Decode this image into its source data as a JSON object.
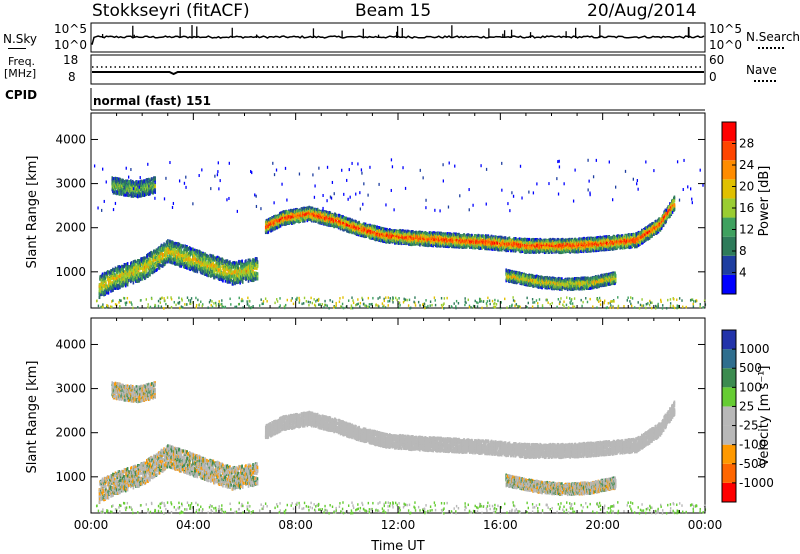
{
  "header": {
    "radar": "Stokkseyri (fitACF)",
    "beam": "Beam 15",
    "date": "20/Aug/2014"
  },
  "sky_panel": {
    "left_label": "N.Sky",
    "left_ticks": [
      "10^5",
      "10^0"
    ],
    "right_label": "N.Search",
    "right_ticks": [
      "10^5",
      "10^0"
    ]
  },
  "freq_panel": {
    "left_label_1": "Freq.",
    "left_label_2": "[MHz]",
    "left_ticks": [
      "18",
      "8"
    ],
    "right_label": "Nave",
    "right_ticks": [
      "60",
      "0"
    ]
  },
  "cpid_panel": {
    "label": "CPID",
    "text": "normal (fast) 151"
  },
  "colors": {
    "power_scale": [
      "#0000ff",
      "#1e3ea0",
      "#2e7b5a",
      "#3fa15f",
      "#9acd32",
      "#e0c000",
      "#ff8c00",
      "#ff4500",
      "#ff0000"
    ],
    "velocity_scale": [
      "#2233aa",
      "#2f6e8e",
      "#3b8b4f",
      "#66cc33",
      "#b8b8b8",
      "#b8b8b8",
      "#ff9900",
      "#ff6600",
      "#ff0000"
    ]
  },
  "chart_data": [
    {
      "type": "heatmap",
      "panel": "power",
      "ylabel": "Slant Range [km]",
      "yticks": [
        1000,
        2000,
        3000,
        4000
      ],
      "ylim": [
        180,
        4600
      ],
      "xlim": [
        0,
        24
      ],
      "colorbar_label": "Power [dB]",
      "colorbar_ticks": [
        "4",
        "8",
        "12",
        "16",
        "20",
        "24",
        "28"
      ],
      "features": [
        {
          "name": "main echo band",
          "t": [
            6.8,
            7.5,
            8.5,
            9.5,
            10.5,
            11.5,
            12.5,
            14,
            15.5,
            17,
            18.5,
            19.5,
            20.5,
            21.3,
            22.2,
            22.8
          ],
          "range": [
            2050,
            2250,
            2350,
            2200,
            2000,
            1850,
            1800,
            1750,
            1700,
            1620,
            1620,
            1650,
            1700,
            1750,
            2100,
            2600
          ],
          "width_km": 300,
          "level": "high"
        },
        {
          "name": "near range echoes",
          "t": [
            0.3,
            1.0,
            2.0,
            3.0,
            4.5,
            5.5,
            6.5
          ],
          "range": [
            700,
            900,
            1100,
            1500,
            1200,
            1000,
            1100
          ],
          "width_km": 500,
          "level": "medium"
        },
        {
          "name": "far range patch",
          "t": [
            0.8,
            1.2,
            1.8,
            2.5
          ],
          "range": [
            3000,
            2950,
            2900,
            3000
          ],
          "width_km": 350,
          "level": "low"
        },
        {
          "name": "evening lower band",
          "t": [
            16.2,
            17.5,
            18.5,
            19.5,
            20.5
          ],
          "range": [
            950,
            800,
            750,
            780,
            900
          ],
          "width_km": 250,
          "level": "medium"
        }
      ]
    },
    {
      "type": "heatmap",
      "panel": "velocity",
      "ylabel": "Slant Range [km]",
      "yticks": [
        1000,
        2000,
        3000,
        4000
      ],
      "ylim": [
        180,
        4600
      ],
      "xlim": [
        0,
        24
      ],
      "xticks": [
        "00:00",
        "04:00",
        "08:00",
        "12:00",
        "16:00",
        "20:00",
        "00:00"
      ],
      "xlabel": "Time UT",
      "colorbar_label": "Velocity [m s⁻¹]",
      "colorbar_ticks": [
        "1000",
        "500",
        "100",
        "25",
        "-25",
        "-100",
        "-500",
        "-1000"
      ],
      "dominant_velocity": "-25 to 25"
    }
  ]
}
